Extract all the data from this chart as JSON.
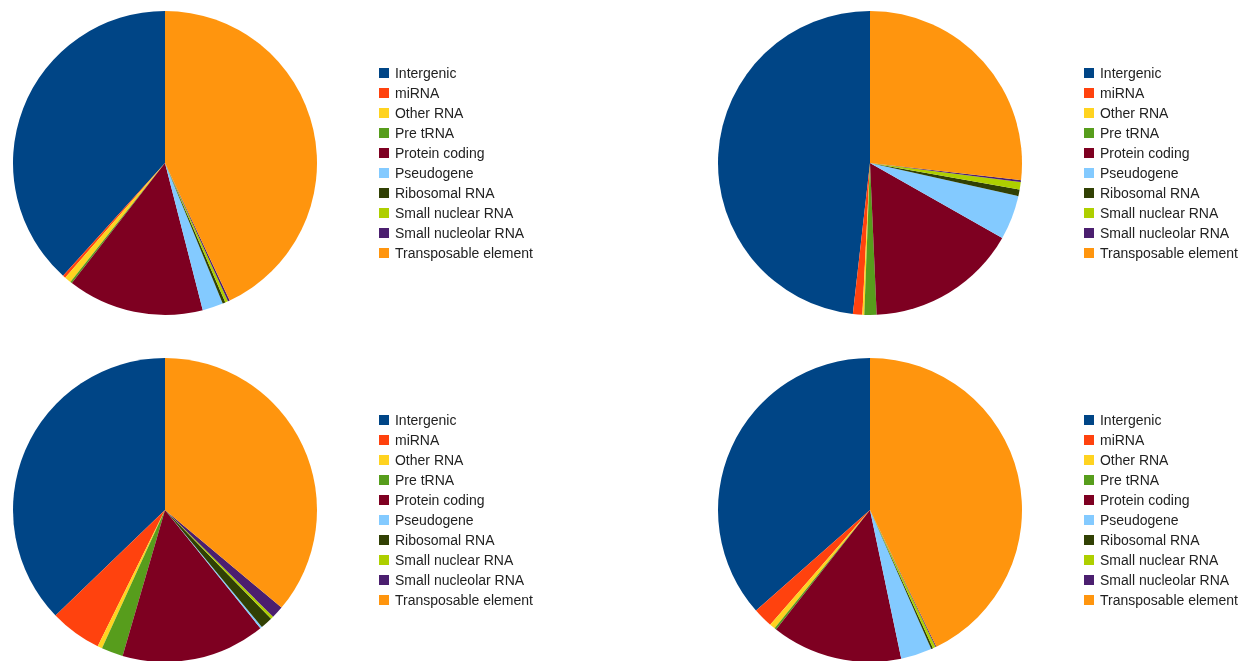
{
  "chart_data": [
    {
      "type": "pie",
      "categories": [
        "Intergenic",
        "miRNA",
        "Other RNA",
        "Pre tRNA",
        "Protein coding",
        "Pseudogene",
        "Ribosomal RNA",
        "Small nuclear RNA",
        "Small nucleolar RNA",
        "Transposable element"
      ],
      "values": [
        38.3,
        0.3,
        0.7,
        0.2,
        14.5,
        2.2,
        0.3,
        0.3,
        0.2,
        43.0
      ],
      "colors": [
        "#004586",
        "#ff420e",
        "#ffd320",
        "#579d1c",
        "#7e0021",
        "#83caff",
        "#314004",
        "#aecf00",
        "#4b1f6f",
        "#ff950e"
      ],
      "legend": "right"
    },
    {
      "type": "pie",
      "categories": [
        "Intergenic",
        "miRNA",
        "Other RNA",
        "Pre tRNA",
        "Protein coding",
        "Pseudogene",
        "Ribosomal RNA",
        "Small nuclear RNA",
        "Small nucleolar RNA",
        "Transposable element"
      ],
      "values": [
        48.2,
        1.0,
        0.2,
        1.3,
        16.1,
        4.7,
        0.7,
        0.8,
        0.2,
        26.8
      ],
      "colors": [
        "#004586",
        "#ff420e",
        "#ffd320",
        "#579d1c",
        "#7e0021",
        "#83caff",
        "#314004",
        "#aecf00",
        "#4b1f6f",
        "#ff950e"
      ],
      "legend": "right"
    },
    {
      "type": "pie",
      "categories": [
        "Intergenic",
        "miRNA",
        "Other RNA",
        "Pre tRNA",
        "Protein coding",
        "Pseudogene",
        "Ribosomal RNA",
        "Small nuclear RNA",
        "Small nucleolar RNA",
        "Transposable element"
      ],
      "values": [
        37.2,
        5.5,
        0.5,
        2.3,
        15.3,
        0.2,
        1.3,
        0.3,
        1.3,
        36.1
      ],
      "colors": [
        "#004586",
        "#ff420e",
        "#ffd320",
        "#579d1c",
        "#7e0021",
        "#83caff",
        "#314004",
        "#aecf00",
        "#4b1f6f",
        "#ff950e"
      ],
      "legend": "right"
    },
    {
      "type": "pie",
      "categories": [
        "Intergenic",
        "miRNA",
        "Other RNA",
        "Pre tRNA",
        "Protein coding",
        "Pseudogene",
        "Ribosomal RNA",
        "Small nuclear RNA",
        "Small nucleolar RNA",
        "Transposable element"
      ],
      "values": [
        36.5,
        2.1,
        0.6,
        0.2,
        13.9,
        3.3,
        0.2,
        0.3,
        0.1,
        42.8
      ],
      "colors": [
        "#004586",
        "#ff420e",
        "#ffd320",
        "#579d1c",
        "#7e0021",
        "#83caff",
        "#314004",
        "#aecf00",
        "#4b1f6f",
        "#ff950e"
      ],
      "legend": "right"
    }
  ]
}
